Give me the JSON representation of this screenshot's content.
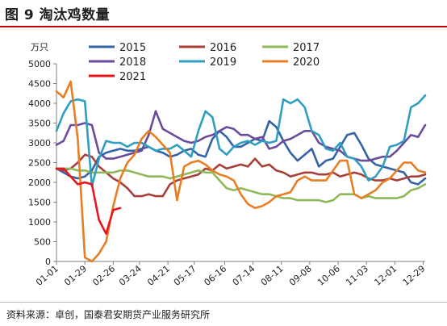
{
  "figure": {
    "title": "图 9 淘汰鸡数量",
    "source": "资料来源：卓创，国泰君安期货产业服务研究所"
  },
  "chart_data": {
    "type": "line",
    "ylabel": "万只",
    "ylim": [
      0,
      5000
    ],
    "yticks": [
      0,
      500,
      1000,
      1500,
      2000,
      2500,
      3000,
      3500,
      4000,
      4500,
      5000
    ],
    "x_domain": [
      "01-01",
      "12-31"
    ],
    "xticks": [
      "01-01",
      "01-29",
      "02-26",
      "03-24",
      "04-21",
      "05-17",
      "06-16",
      "07-14",
      "08-11",
      "09-08",
      "10-06",
      "11-03",
      "12-01",
      "12-29"
    ],
    "grid": false,
    "legend": "top",
    "series": [
      {
        "name": "2015",
        "color": "#3563a8",
        "x": [
          "01-01",
          "01-08",
          "01-15",
          "01-22",
          "01-29",
          "02-05",
          "02-12",
          "02-19",
          "02-26",
          "03-05",
          "03-12",
          "03-19",
          "03-26",
          "04-02",
          "04-09",
          "04-16",
          "04-23",
          "04-30",
          "05-07",
          "05-14",
          "05-21",
          "05-28",
          "06-04",
          "06-11",
          "06-18",
          "06-25",
          "07-02",
          "07-09",
          "07-16",
          "07-23",
          "07-30",
          "08-06",
          "08-13",
          "08-20",
          "08-27",
          "09-03",
          "09-10",
          "09-17",
          "09-24",
          "10-01",
          "10-08",
          "10-15",
          "10-22",
          "10-29",
          "11-05",
          "11-12",
          "11-19",
          "11-26",
          "12-03",
          "12-10",
          "12-17",
          "12-24",
          "12-31"
        ],
        "values": [
          2350,
          2250,
          2150,
          2100,
          2150,
          2300,
          2650,
          2750,
          2800,
          2850,
          2800,
          2800,
          2850,
          2900,
          2800,
          2750,
          2650,
          2700,
          2800,
          2850,
          2700,
          2650,
          3100,
          3300,
          3150,
          2900,
          2900,
          3000,
          3100,
          3050,
          3550,
          3400,
          3050,
          2750,
          2550,
          2700,
          2850,
          2400,
          2550,
          2600,
          2900,
          3200,
          3250,
          2950,
          2600,
          2450,
          2400,
          2350,
          2300,
          2250,
          2000,
          1950,
          2100
        ]
      },
      {
        "name": "2016",
        "color": "#a8403a",
        "x": [
          "01-01",
          "01-08",
          "01-15",
          "01-22",
          "01-29",
          "02-05",
          "02-12",
          "02-19",
          "02-26",
          "03-05",
          "03-12",
          "03-19",
          "03-26",
          "04-02",
          "04-09",
          "04-16",
          "04-23",
          "04-30",
          "05-07",
          "05-14",
          "05-21",
          "05-28",
          "06-04",
          "06-11",
          "06-18",
          "06-25",
          "07-02",
          "07-09",
          "07-16",
          "07-23",
          "07-30",
          "08-06",
          "08-13",
          "08-20",
          "08-27",
          "09-03",
          "09-10",
          "09-17",
          "09-24",
          "10-01",
          "10-08",
          "10-15",
          "10-22",
          "10-29",
          "11-05",
          "11-12",
          "11-19",
          "11-26",
          "12-03",
          "12-10",
          "12-17",
          "12-24",
          "12-31"
        ],
        "values": [
          2350,
          2300,
          2350,
          2500,
          2700,
          2650,
          2400,
          2250,
          2100,
          2000,
          1850,
          1650,
          1650,
          1700,
          1650,
          1650,
          1950,
          2050,
          2100,
          2150,
          2200,
          2350,
          2300,
          2450,
          2350,
          2400,
          2450,
          2400,
          2600,
          2400,
          2450,
          2300,
          2250,
          2150,
          2200,
          2250,
          2250,
          2200,
          2200,
          2250,
          2150,
          2200,
          2250,
          2200,
          2100,
          2050,
          2050,
          2100,
          2050,
          2100,
          2150,
          2150,
          2200
        ]
      },
      {
        "name": "2017",
        "color": "#8fb85a",
        "x": [
          "01-01",
          "01-08",
          "01-15",
          "01-22",
          "01-29",
          "02-05",
          "02-12",
          "02-19",
          "02-26",
          "03-05",
          "03-12",
          "03-19",
          "03-26",
          "04-02",
          "04-09",
          "04-16",
          "04-23",
          "04-30",
          "05-07",
          "05-14",
          "05-21",
          "05-28",
          "06-04",
          "06-11",
          "06-18",
          "06-25",
          "07-02",
          "07-09",
          "07-16",
          "07-23",
          "07-30",
          "08-06",
          "08-13",
          "08-20",
          "08-27",
          "09-03",
          "09-10",
          "09-17",
          "09-24",
          "10-01",
          "10-08",
          "10-15",
          "10-22",
          "10-29",
          "11-05",
          "11-12",
          "11-19",
          "11-26",
          "12-03",
          "12-10",
          "12-17",
          "12-24",
          "12-31"
        ],
        "values": [
          2350,
          2350,
          2350,
          2300,
          2300,
          2250,
          2250,
          2250,
          2250,
          2300,
          2300,
          2250,
          2200,
          2150,
          2150,
          2150,
          2100,
          2150,
          2200,
          2250,
          2300,
          2250,
          2250,
          2050,
          1850,
          1800,
          1850,
          1800,
          1750,
          1700,
          1700,
          1650,
          1600,
          1600,
          1550,
          1550,
          1550,
          1550,
          1500,
          1550,
          1700,
          1700,
          1700,
          1600,
          1650,
          1600,
          1600,
          1600,
          1600,
          1650,
          1800,
          1850,
          1950
        ]
      },
      {
        "name": "2018",
        "color": "#6b4b9c",
        "x": [
          "01-01",
          "01-08",
          "01-15",
          "01-22",
          "01-29",
          "02-05",
          "02-12",
          "02-19",
          "02-26",
          "03-05",
          "03-12",
          "03-19",
          "03-26",
          "04-02",
          "04-09",
          "04-16",
          "04-23",
          "04-30",
          "05-07",
          "05-14",
          "05-21",
          "05-28",
          "06-04",
          "06-11",
          "06-18",
          "06-25",
          "07-02",
          "07-09",
          "07-16",
          "07-23",
          "07-30",
          "08-06",
          "08-13",
          "08-20",
          "08-27",
          "09-03",
          "09-10",
          "09-17",
          "09-24",
          "10-01",
          "10-08",
          "10-15",
          "10-22",
          "10-29",
          "11-05",
          "11-12",
          "11-19",
          "11-26",
          "12-03",
          "12-10",
          "12-17",
          "12-24",
          "12-31"
        ],
        "values": [
          2950,
          3050,
          3450,
          3450,
          3500,
          3450,
          2750,
          2600,
          2600,
          2650,
          2700,
          2750,
          2800,
          3200,
          3800,
          3350,
          3250,
          3150,
          3050,
          3000,
          3050,
          3150,
          3200,
          3300,
          3400,
          3350,
          3200,
          3200,
          3100,
          3150,
          2850,
          2900,
          3050,
          3100,
          3200,
          3300,
          3300,
          3000,
          2900,
          2850,
          2800,
          2650,
          2600,
          2550,
          2550,
          2600,
          2650,
          2650,
          2800,
          3000,
          3200,
          3150,
          3450
        ]
      },
      {
        "name": "2019",
        "color": "#2f9ec0",
        "x": [
          "01-01",
          "01-08",
          "01-15",
          "01-22",
          "01-29",
          "02-05",
          "02-12",
          "02-19",
          "02-26",
          "03-05",
          "03-12",
          "03-19",
          "03-26",
          "04-02",
          "04-09",
          "04-16",
          "04-23",
          "04-30",
          "05-07",
          "05-14",
          "05-21",
          "05-28",
          "06-04",
          "06-11",
          "06-18",
          "06-25",
          "07-02",
          "07-09",
          "07-16",
          "07-23",
          "07-30",
          "08-06",
          "08-13",
          "08-20",
          "08-27",
          "09-03",
          "09-10",
          "09-17",
          "09-24",
          "10-01",
          "10-08",
          "10-15",
          "10-22",
          "10-29",
          "11-05",
          "11-12",
          "11-19",
          "11-26",
          "12-03",
          "12-10",
          "12-17",
          "12-24",
          "12-31"
        ],
        "values": [
          3300,
          3750,
          4050,
          4100,
          4050,
          1900,
          2600,
          3050,
          3000,
          3000,
          2900,
          3000,
          3000,
          2900,
          2800,
          2850,
          2850,
          2950,
          2800,
          2650,
          3300,
          3800,
          3650,
          2850,
          2700,
          2900,
          3000,
          3050,
          2950,
          3050,
          3000,
          3050,
          4100,
          4000,
          4100,
          3900,
          3300,
          3200,
          2850,
          2800,
          3000,
          2650,
          2600,
          2400,
          2050,
          2150,
          2400,
          2900,
          2950,
          3050,
          3900,
          4000,
          4200
        ]
      },
      {
        "name": "2020",
        "color": "#e87d24",
        "x": [
          "01-01",
          "01-08",
          "01-15",
          "01-22",
          "01-29",
          "02-05",
          "02-12",
          "02-19",
          "02-26",
          "03-05",
          "03-12",
          "03-19",
          "03-26",
          "04-02",
          "04-09",
          "04-16",
          "04-23",
          "04-30",
          "05-07",
          "05-14",
          "05-21",
          "05-28",
          "06-04",
          "06-11",
          "06-18",
          "06-25",
          "07-02",
          "07-09",
          "07-16",
          "07-23",
          "07-30",
          "08-06",
          "08-13",
          "08-20",
          "08-27",
          "09-03",
          "09-10",
          "09-17",
          "09-24",
          "10-01",
          "10-08",
          "10-15",
          "10-22",
          "10-29",
          "11-05",
          "11-12",
          "11-19",
          "11-26",
          "12-03",
          "12-10",
          "12-17",
          "12-24",
          "12-31"
        ],
        "values": [
          4300,
          4150,
          4550,
          3100,
          100,
          0,
          200,
          500,
          1400,
          2100,
          2500,
          2700,
          3100,
          3300,
          3150,
          2950,
          2750,
          1550,
          2400,
          2500,
          2550,
          2450,
          2300,
          2200,
          2150,
          2050,
          1700,
          1450,
          1350,
          1400,
          1500,
          1650,
          1700,
          1750,
          2050,
          2150,
          2050,
          2050,
          2050,
          2300,
          2550,
          2550,
          1700,
          1600,
          1700,
          1800,
          2000,
          2100,
          2300,
          2500,
          2500,
          2300,
          2250
        ]
      },
      {
        "name": "2021",
        "color": "#e8141e",
        "x": [
          "01-01",
          "01-08",
          "01-15",
          "01-22",
          "01-29",
          "02-05",
          "02-12",
          "02-19",
          "02-26",
          "03-05"
        ],
        "values": [
          2350,
          2350,
          2150,
          1950,
          2000,
          1950,
          1050,
          700,
          1300,
          1350
        ]
      }
    ]
  }
}
